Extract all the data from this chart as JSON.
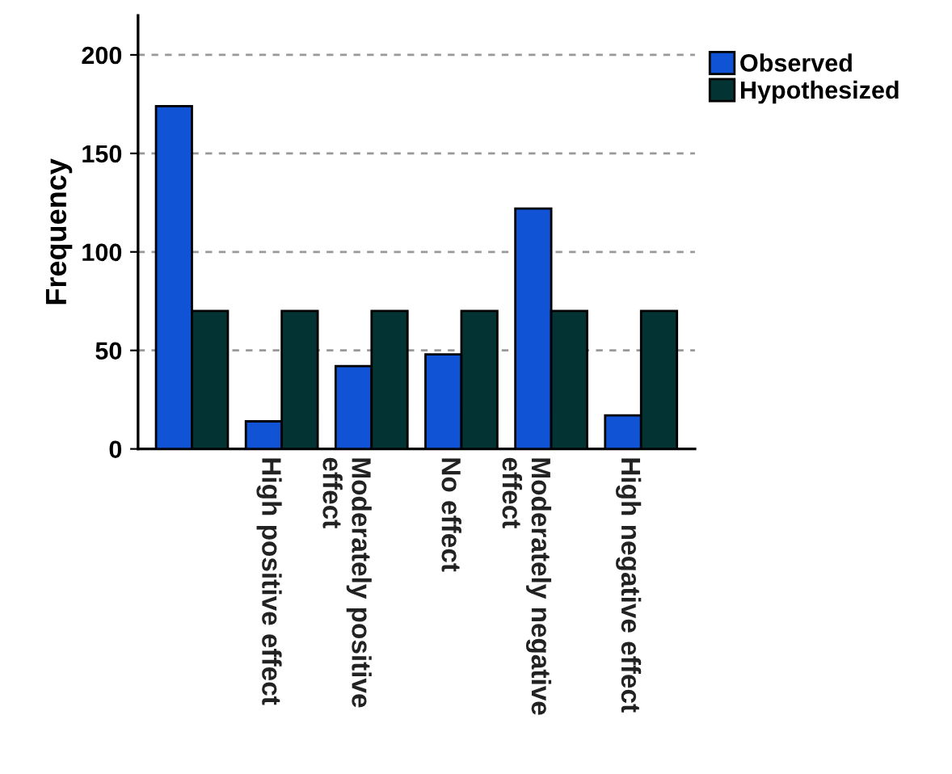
{
  "chart_data": {
    "type": "bar",
    "ylabel": "Frequency",
    "categories": [
      null,
      "High positive effect",
      "Moderately positive effect",
      "No effect",
      "Moderately negative effect",
      "High negative effect"
    ],
    "series": [
      {
        "name": "Observed",
        "color": "#1053d4",
        "values": [
          174,
          14,
          42,
          48,
          122,
          17
        ]
      },
      {
        "name": "Hypothesized",
        "color": "#033433",
        "values": [
          70,
          70,
          70,
          70,
          70,
          70
        ]
      }
    ],
    "ylim": [
      0,
      220
    ],
    "yticks": [
      0,
      50,
      100,
      150,
      200
    ],
    "grid": "y",
    "legend": "top right"
  }
}
